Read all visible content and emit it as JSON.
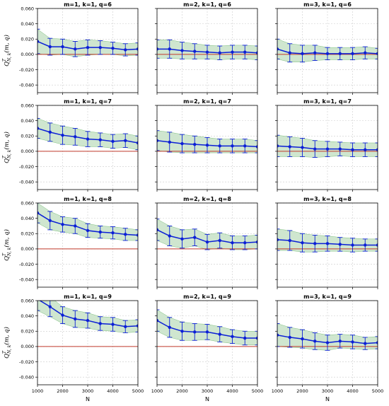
{
  "figure": {
    "colors": {
      "line": "#0b1fd6",
      "band_fill": "#cfe6cf",
      "band_edge": "#7fbf7f",
      "zero_line": "#c0392b",
      "grid": "#cccccc",
      "axis": "#000000"
    }
  },
  "chart_data": [
    {
      "type": "line",
      "title": "m=1, k=1, q=6",
      "x": [
        1000,
        1500,
        2000,
        2500,
        3000,
        3500,
        4000,
        4500,
        5000
      ],
      "y": [
        0.017,
        0.01,
        0.01,
        0.007,
        0.009,
        0.009,
        0.008,
        0.006,
        0.007
      ],
      "err": [
        0.016,
        0.011,
        0.01,
        0.01,
        0.01,
        0.009,
        0.008,
        0.008,
        0.008
      ],
      "xlim": [
        1000,
        5000
      ],
      "ylim": [
        -0.05,
        0.06
      ],
      "yticks": [
        "-0.040",
        "-0.020",
        "0.000",
        "0.020",
        "0.040",
        "0.060"
      ],
      "xticks": [
        "1000",
        "2000",
        "3000",
        "4000",
        "5000"
      ],
      "ylabel": "Q^T_{N,k}(m,q)",
      "xlabel": "",
      "grid": true
    },
    {
      "type": "line",
      "title": "m=2, k=1, q=6",
      "x": [
        1000,
        1500,
        2000,
        2500,
        3000,
        3500,
        4000,
        4500,
        5000
      ],
      "y": [
        0.007,
        0.007,
        0.005,
        0.004,
        0.003,
        0.002,
        0.003,
        0.003,
        0.002
      ],
      "err": [
        0.012,
        0.012,
        0.011,
        0.01,
        0.009,
        0.009,
        0.009,
        0.009,
        0.009
      ],
      "xlim": [
        1000,
        5000
      ],
      "ylim": [
        -0.05,
        0.06
      ],
      "yticks": [
        "-0.040",
        "-0.020",
        "0.000",
        "0.020",
        "0.040",
        "0.060"
      ],
      "xticks": [
        "1000",
        "2000",
        "3000",
        "4000",
        "5000"
      ],
      "ylabel": "",
      "xlabel": "",
      "grid": true
    },
    {
      "type": "line",
      "title": "m=3, k=1, q=6",
      "x": [
        1000,
        1500,
        2000,
        2500,
        3000,
        3500,
        4000,
        4500,
        5000
      ],
      "y": [
        0.007,
        0.002,
        0.001,
        0.002,
        0.001,
        0.001,
        0.001,
        0.002,
        0.001
      ],
      "err": [
        0.013,
        0.012,
        0.011,
        0.01,
        0.008,
        0.008,
        0.008,
        0.008,
        0.007
      ],
      "xlim": [
        1000,
        5000
      ],
      "ylim": [
        -0.05,
        0.06
      ],
      "yticks": [
        "-0.040",
        "-0.020",
        "0.000",
        "0.020",
        "0.040",
        "0.060"
      ],
      "xticks": [
        "1000",
        "2000",
        "3000",
        "4000",
        "5000"
      ],
      "ylabel": "",
      "xlabel": "",
      "grid": true
    },
    {
      "type": "line",
      "title": "m=1, k=1, q=7",
      "x": [
        1000,
        1500,
        2000,
        2500,
        3000,
        3500,
        4000,
        4500,
        5000
      ],
      "y": [
        0.03,
        0.025,
        0.021,
        0.019,
        0.016,
        0.015,
        0.013,
        0.014,
        0.011
      ],
      "err": [
        0.013,
        0.012,
        0.012,
        0.011,
        0.01,
        0.009,
        0.009,
        0.009,
        0.009
      ],
      "xlim": [
        1000,
        5000
      ],
      "ylim": [
        -0.05,
        0.06
      ],
      "yticks": [
        "-0.040",
        "-0.020",
        "0.000",
        "0.020",
        "0.040",
        "0.060"
      ],
      "xticks": [
        "1000",
        "2000",
        "3000",
        "4000",
        "5000"
      ],
      "ylabel": "Q^T_{N,k}(m,q)",
      "xlabel": "",
      "grid": true
    },
    {
      "type": "line",
      "title": "m=2, k=1, q=7",
      "x": [
        1000,
        1500,
        2000,
        2500,
        3000,
        3500,
        4000,
        4500,
        5000
      ],
      "y": [
        0.014,
        0.012,
        0.01,
        0.009,
        0.008,
        0.007,
        0.007,
        0.007,
        0.006
      ],
      "err": [
        0.013,
        0.013,
        0.012,
        0.011,
        0.01,
        0.009,
        0.009,
        0.009,
        0.008
      ],
      "xlim": [
        1000,
        5000
      ],
      "ylim": [
        -0.05,
        0.06
      ],
      "yticks": [
        "-0.040",
        "-0.020",
        "0.000",
        "0.020",
        "0.040",
        "0.060"
      ],
      "xticks": [
        "1000",
        "2000",
        "3000",
        "4000",
        "5000"
      ],
      "ylabel": "",
      "xlabel": "",
      "grid": true
    },
    {
      "type": "line",
      "title": "m=3, k=1, q=7",
      "x": [
        1000,
        1500,
        2000,
        2500,
        3000,
        3500,
        4000,
        4500,
        5000
      ],
      "y": [
        0.007,
        0.006,
        0.005,
        0.003,
        0.003,
        0.003,
        0.002,
        0.002,
        0.002
      ],
      "err": [
        0.014,
        0.013,
        0.012,
        0.011,
        0.01,
        0.009,
        0.009,
        0.009,
        0.009
      ],
      "xlim": [
        1000,
        5000
      ],
      "ylim": [
        -0.05,
        0.06
      ],
      "yticks": [
        "-0.040",
        "-0.020",
        "0.000",
        "0.020",
        "0.040",
        "0.060"
      ],
      "xticks": [
        "1000",
        "2000",
        "3000",
        "4000",
        "5000"
      ],
      "ylabel": "",
      "xlabel": "",
      "grid": true
    },
    {
      "type": "line",
      "title": "m=1, k=1, q=8",
      "x": [
        1000,
        1500,
        2000,
        2500,
        3000,
        3500,
        4000,
        4500,
        5000
      ],
      "y": [
        0.047,
        0.037,
        0.032,
        0.03,
        0.024,
        0.022,
        0.021,
        0.019,
        0.018
      ],
      "err": [
        0.013,
        0.012,
        0.01,
        0.01,
        0.009,
        0.008,
        0.008,
        0.008,
        0.007
      ],
      "xlim": [
        1000,
        5000
      ],
      "ylim": [
        -0.05,
        0.06
      ],
      "yticks": [
        "-0.040",
        "-0.020",
        "0.000",
        "0.020",
        "0.040",
        "0.060"
      ],
      "xticks": [
        "1000",
        "2000",
        "3000",
        "4000",
        "5000"
      ],
      "ylabel": "Q^T_{N,k}(m,q)",
      "xlabel": "",
      "grid": true
    },
    {
      "type": "line",
      "title": "m=2, k=1, q=8",
      "x": [
        1000,
        1500,
        2000,
        2500,
        3000,
        3500,
        4000,
        4500,
        5000
      ],
      "y": [
        0.025,
        0.017,
        0.013,
        0.015,
        0.009,
        0.011,
        0.008,
        0.008,
        0.009
      ],
      "err": [
        0.014,
        0.013,
        0.012,
        0.011,
        0.01,
        0.01,
        0.009,
        0.009,
        0.009
      ],
      "xlim": [
        1000,
        5000
      ],
      "ylim": [
        -0.05,
        0.06
      ],
      "yticks": [
        "-0.040",
        "-0.020",
        "0.000",
        "0.020",
        "0.040",
        "0.060"
      ],
      "xticks": [
        "1000",
        "2000",
        "3000",
        "4000",
        "5000"
      ],
      "ylabel": "",
      "xlabel": "",
      "grid": true
    },
    {
      "type": "line",
      "title": "m=3, k=1, q=8",
      "x": [
        1000,
        1500,
        2000,
        2500,
        3000,
        3500,
        4000,
        4500,
        5000
      ],
      "y": [
        0.012,
        0.011,
        0.008,
        0.007,
        0.007,
        0.006,
        0.005,
        0.005,
        0.005
      ],
      "err": [
        0.014,
        0.013,
        0.012,
        0.011,
        0.01,
        0.009,
        0.009,
        0.008,
        0.008
      ],
      "xlim": [
        1000,
        5000
      ],
      "ylim": [
        -0.05,
        0.06
      ],
      "yticks": [
        "-0.040",
        "-0.020",
        "0.000",
        "0.020",
        "0.040",
        "0.060"
      ],
      "xticks": [
        "1000",
        "2000",
        "3000",
        "4000",
        "5000"
      ],
      "ylabel": "",
      "xlabel": "",
      "grid": true
    },
    {
      "type": "line",
      "title": "m=1, k=1, q=9",
      "x": [
        1000,
        1500,
        2000,
        2500,
        3000,
        3500,
        4000,
        4500,
        5000
      ],
      "y": [
        0.062,
        0.052,
        0.041,
        0.036,
        0.034,
        0.03,
        0.029,
        0.026,
        0.027
      ],
      "err": [
        0.015,
        0.013,
        0.011,
        0.011,
        0.01,
        0.009,
        0.009,
        0.008,
        0.008
      ],
      "xlim": [
        1000,
        5000
      ],
      "ylim": [
        -0.05,
        0.06
      ],
      "yticks": [
        "-0.040",
        "-0.020",
        "0.000",
        "0.020",
        "0.040",
        "0.060"
      ],
      "xticks": [
        "1000",
        "2000",
        "3000",
        "4000",
        "5000"
      ],
      "ylabel": "Q^T_{N,k}(m,q)",
      "xlabel": "N",
      "grid": true
    },
    {
      "type": "line",
      "title": "m=2, k=1, q=9",
      "x": [
        1000,
        1500,
        2000,
        2500,
        3000,
        3500,
        4000,
        4500,
        5000
      ],
      "y": [
        0.034,
        0.025,
        0.02,
        0.019,
        0.019,
        0.016,
        0.013,
        0.011,
        0.011
      ],
      "err": [
        0.014,
        0.013,
        0.012,
        0.011,
        0.01,
        0.01,
        0.009,
        0.009,
        0.009
      ],
      "xlim": [
        1000,
        5000
      ],
      "ylim": [
        -0.05,
        0.06
      ],
      "yticks": [
        "-0.040",
        "-0.020",
        "0.000",
        "0.020",
        "0.040",
        "0.060"
      ],
      "xticks": [
        "1000",
        "2000",
        "3000",
        "4000",
        "5000"
      ],
      "ylabel": "",
      "xlabel": "N",
      "grid": true
    },
    {
      "type": "line",
      "title": "m=3, k=1, q=9",
      "x": [
        1000,
        1500,
        2000,
        2500,
        3000,
        3500,
        4000,
        4500,
        5000
      ],
      "y": [
        0.015,
        0.012,
        0.01,
        0.007,
        0.005,
        0.007,
        0.006,
        0.004,
        0.005
      ],
      "err": [
        0.015,
        0.013,
        0.012,
        0.011,
        0.01,
        0.009,
        0.009,
        0.008,
        0.008
      ],
      "xlim": [
        1000,
        5000
      ],
      "ylim": [
        -0.05,
        0.06
      ],
      "yticks": [
        "-0.040",
        "-0.020",
        "0.000",
        "0.020",
        "0.040",
        "0.060"
      ],
      "xticks": [
        "1000",
        "2000",
        "3000",
        "4000",
        "5000"
      ],
      "ylabel": "",
      "xlabel": "N",
      "grid": true
    }
  ]
}
